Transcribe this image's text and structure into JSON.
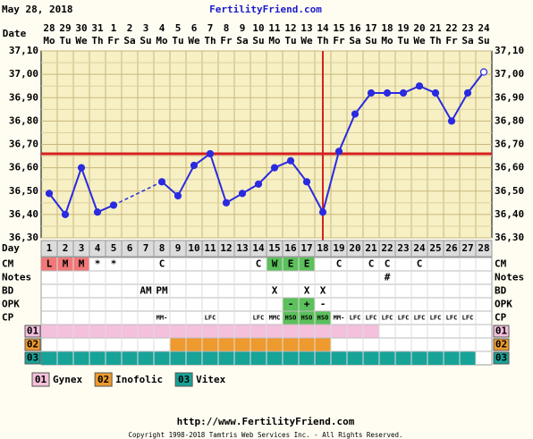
{
  "header": {
    "date": "May 28, 2018",
    "site": "FertilityFriend.com"
  },
  "chart_data": {
    "type": "line",
    "date_label": "Date",
    "day_label": "Day",
    "dates": [
      "28",
      "29",
      "30",
      "31",
      "1",
      "2",
      "3",
      "4",
      "5",
      "6",
      "7",
      "8",
      "9",
      "10",
      "11",
      "12",
      "13",
      "14",
      "15",
      "16",
      "17",
      "18",
      "19",
      "20",
      "21",
      "22",
      "23",
      "24"
    ],
    "weekdays": [
      "Mo",
      "Tu",
      "We",
      "Th",
      "Fr",
      "Sa",
      "Su",
      "Mo",
      "Tu",
      "We",
      "Th",
      "Fr",
      "Sa",
      "Su",
      "Mo",
      "Tu",
      "We",
      "Th",
      "Fr",
      "Sa",
      "Su",
      "Mo",
      "Tu",
      "We",
      "Th",
      "Fr",
      "Sa",
      "Su"
    ],
    "categories": [
      1,
      2,
      3,
      4,
      5,
      6,
      7,
      8,
      9,
      10,
      11,
      12,
      13,
      14,
      15,
      16,
      17,
      18,
      19,
      20,
      21,
      22,
      23,
      24,
      25,
      26,
      27,
      28
    ],
    "values": [
      36.49,
      36.4,
      36.6,
      36.41,
      36.44,
      null,
      null,
      36.54,
      36.48,
      36.61,
      36.66,
      36.45,
      36.49,
      36.53,
      36.6,
      36.63,
      36.54,
      36.41,
      36.67,
      36.83,
      36.92,
      36.92,
      36.92,
      36.95,
      36.92,
      36.8,
      36.92,
      37.01
    ],
    "color": "#2a2ae0",
    "ylim": [
      36.3,
      37.1
    ],
    "yticks": [
      {
        "value": 36.3,
        "label": "36,30"
      },
      {
        "value": 36.4,
        "label": "36,40"
      },
      {
        "value": 36.5,
        "label": "36,50"
      },
      {
        "value": 36.6,
        "label": "36,60"
      },
      {
        "value": 36.7,
        "label": "36,70"
      },
      {
        "value": 36.8,
        "label": "36,80"
      },
      {
        "value": 36.9,
        "label": "36,90"
      },
      {
        "value": 37.0,
        "label": "37,00"
      },
      {
        "value": 37.1,
        "label": "37,10"
      }
    ],
    "grid": true,
    "coverline": 36.66,
    "ovulation_day": 18,
    "marker_line_color": "#d62020"
  },
  "signs": [
    {
      "label": "CM",
      "cells": [
        "L",
        "M",
        "M",
        "*",
        "*",
        null,
        null,
        "C",
        null,
        null,
        null,
        null,
        null,
        "C",
        "W",
        "E",
        "E",
        null,
        "C",
        null,
        "C",
        "C",
        null,
        "C",
        null,
        null,
        null,
        null
      ],
      "highlights": [
        {
          "from": 1,
          "to": 3,
          "color": "#f07878"
        },
        {
          "from": 15,
          "to": 17,
          "color": "#5cc05c"
        }
      ]
    },
    {
      "label": "Notes",
      "cells": [
        null,
        null,
        null,
        null,
        null,
        null,
        null,
        null,
        null,
        null,
        null,
        null,
        null,
        null,
        null,
        null,
        null,
        null,
        null,
        null,
        null,
        "#",
        null,
        null,
        null,
        null,
        null,
        null
      ],
      "highlights": []
    },
    {
      "label": "BD",
      "cells": [
        null,
        null,
        null,
        null,
        null,
        null,
        "AM",
        "PM",
        null,
        null,
        null,
        null,
        null,
        null,
        "X",
        null,
        "X",
        "X",
        null,
        null,
        null,
        null,
        null,
        null,
        null,
        null,
        null,
        null
      ],
      "highlights": []
    },
    {
      "label": "OPK",
      "cells": [
        null,
        null,
        null,
        null,
        null,
        null,
        null,
        null,
        null,
        null,
        null,
        null,
        null,
        null,
        null,
        "-",
        "+",
        "-",
        null,
        null,
        null,
        null,
        null,
        null,
        null,
        null,
        null,
        null
      ],
      "highlights": [
        {
          "from": 16,
          "to": 17,
          "color": "#5cc05c"
        }
      ]
    },
    {
      "label": "CP",
      "cells": [
        null,
        null,
        null,
        null,
        null,
        null,
        null,
        "MM-",
        null,
        null,
        "LFC",
        null,
        null,
        "LFC",
        "MMC",
        "HSO",
        "HSO",
        "HSO",
        "MM-",
        "LFC",
        "LFC",
        "LFC",
        "LFC",
        "LFC",
        "LFC",
        "LFC",
        "LFC",
        null
      ],
      "highlights": [
        {
          "from": 16,
          "to": 18,
          "color": "#5cc05c"
        }
      ]
    }
  ],
  "medications": [
    {
      "code": "01",
      "name": "Gynex",
      "color": "#f4c0dc",
      "from": 1,
      "to": 21
    },
    {
      "code": "02",
      "name": "Inofolic",
      "color": "#ee9a2e",
      "from": 9,
      "to": 18
    },
    {
      "code": "03",
      "name": "Vitex",
      "color": "#17a398",
      "from": 1,
      "to": 27
    }
  ],
  "footer": {
    "url": "http://www.FertilityFriend.com",
    "copyright": "Copyright 1998-2018 Tamtris Web Services Inc. - All Rights Reserved."
  }
}
